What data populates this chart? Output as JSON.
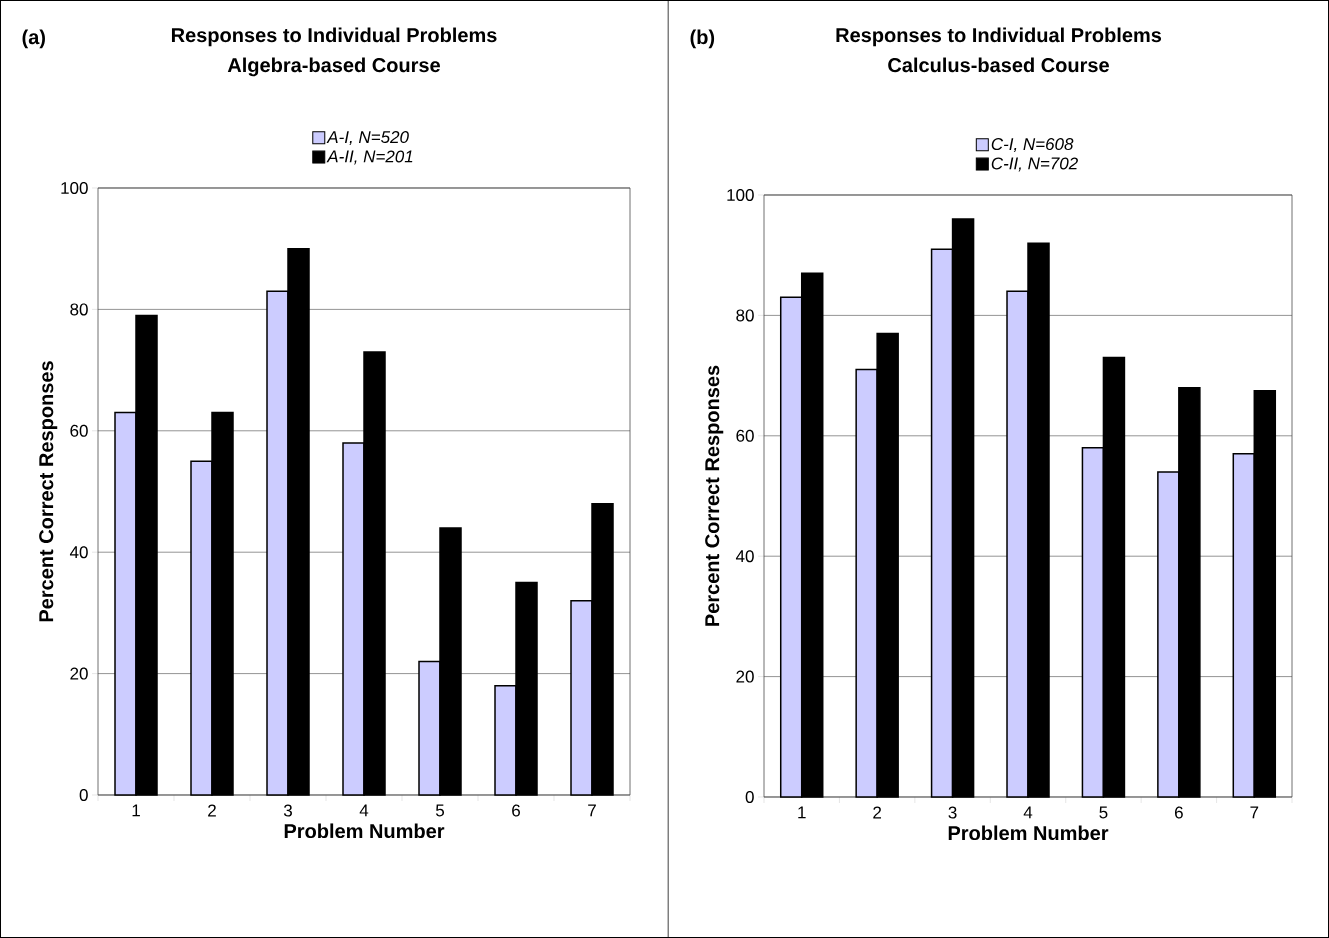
{
  "chart_data": [
    {
      "type": "bar",
      "title": "Responses to Individual Problems",
      "subtitle": "Algebra-based Course",
      "xlabel": "Problem Number",
      "ylabel": "Percent Correct Responses",
      "annotations": [
        "(a)"
      ],
      "categories": [
        "1",
        "2",
        "3",
        "4",
        "5",
        "6",
        "7"
      ],
      "series": [
        {
          "name": "A-I, N=520",
          "color": "#ccccff",
          "values": [
            63,
            55,
            83,
            58,
            22,
            18,
            32
          ]
        },
        {
          "name": "A-II, N=201",
          "color": "#000000",
          "values": [
            79,
            63,
            90,
            73,
            44,
            35,
            48
          ]
        }
      ],
      "ylim": [
        0,
        100
      ],
      "yticks": [
        0,
        20,
        40,
        60,
        80,
        100
      ],
      "grid": "y",
      "legend": "top"
    },
    {
      "type": "bar",
      "title": "Responses to Individual Problems",
      "subtitle": "Calculus-based Course",
      "xlabel": "Problem Number",
      "ylabel": "Percent Correct Responses",
      "annotations": [
        "(b)"
      ],
      "categories": [
        "1",
        "2",
        "3",
        "4",
        "5",
        "6",
        "7"
      ],
      "series": [
        {
          "name": "C-I, N=608",
          "color": "#ccccff",
          "values": [
            83,
            71,
            91,
            84,
            58,
            54,
            57
          ]
        },
        {
          "name": "C-II, N=702",
          "color": "#000000",
          "values": [
            87,
            77,
            96,
            92,
            73,
            68,
            67.5
          ]
        }
      ],
      "ylim": [
        0,
        100
      ],
      "yticks": [
        0,
        20,
        40,
        60,
        80,
        100
      ],
      "grid": "y",
      "legend": "top"
    }
  ]
}
